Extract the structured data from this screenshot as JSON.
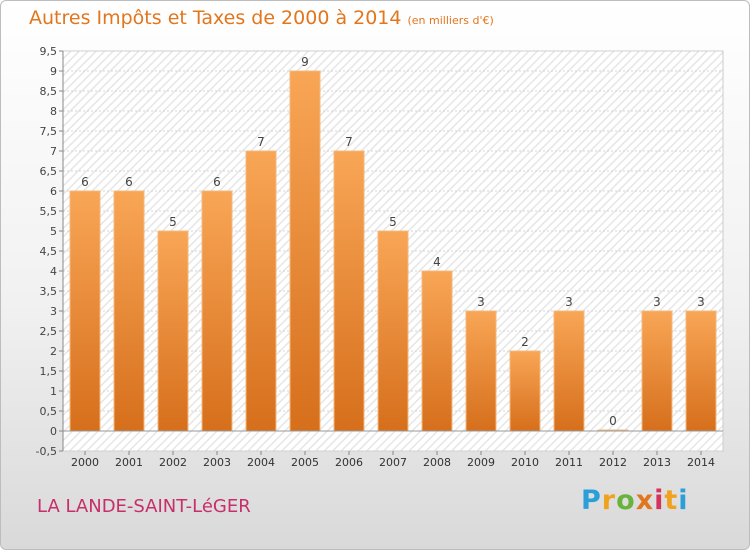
{
  "header": {
    "title": "Autres Impôts et Taxes de 2000 à 2014",
    "subtitle": "(en milliers d'€)"
  },
  "footer": {
    "place": "LA LANDE-SAINT-LéGER",
    "logo_letters": [
      "P",
      "r",
      "o",
      "x",
      "i",
      "t",
      "i"
    ],
    "logo_colors": [
      "#2a9fd8",
      "#f0a21e",
      "#69b33b",
      "#e2761d",
      "#d6325e",
      "#f0a21e",
      "#2a9fd8"
    ]
  },
  "colors": {
    "bar_light": "#f8a656",
    "bar_dark": "#d66f1c",
    "accent": "#e2761d"
  },
  "chart_data": {
    "type": "bar",
    "title": "Autres Impôts et Taxes de 2000 à 2014",
    "subtitle": "(en milliers d'€)",
    "categories": [
      "2000",
      "2001",
      "2002",
      "2003",
      "2004",
      "2005",
      "2006",
      "2007",
      "2008",
      "2009",
      "2010",
      "2011",
      "2012",
      "2013",
      "2014"
    ],
    "values": [
      6,
      6,
      5,
      6,
      7,
      9,
      7,
      5,
      4,
      3,
      2,
      3,
      0,
      3,
      3
    ],
    "data_labels": [
      "6",
      "6",
      "5",
      "6",
      "7",
      "9",
      "7",
      "5",
      "4",
      "3",
      "2",
      "3",
      "0",
      "3",
      "3"
    ],
    "yticks": [
      -0.5,
      0,
      0.5,
      1,
      1.5,
      2,
      2.5,
      3,
      3.5,
      4,
      4.5,
      5,
      5.5,
      6,
      6.5,
      7,
      7.5,
      8,
      8.5,
      9,
      9.5
    ],
    "ytick_labels": [
      "-0,5",
      "0",
      "0,5",
      "1",
      "1,5",
      "2",
      "2,5",
      "3",
      "3,5",
      "4",
      "4,5",
      "5",
      "5,5",
      "6",
      "6,5",
      "7",
      "7,5",
      "8",
      "8,5",
      "9",
      "9,5"
    ],
    "ylim": [
      -0.5,
      9.5
    ],
    "grid": true,
    "legend": "none"
  }
}
